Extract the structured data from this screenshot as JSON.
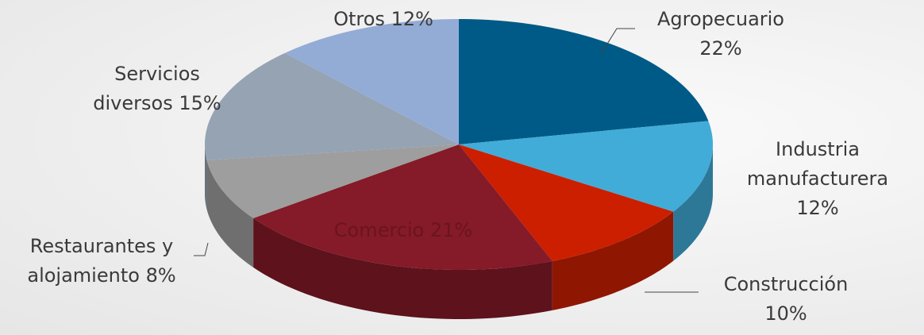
{
  "chart_data": {
    "type": "pie3d",
    "categories": [
      "Agropecuario",
      "Industria manufacturera",
      "Construcción",
      "Comercio",
      "Restaurantes y alojamiento",
      "Servicios diversos",
      "Otros"
    ],
    "values": [
      22,
      12,
      10,
      21,
      8,
      15,
      12
    ],
    "value_labels": [
      "22%",
      "12%",
      "10%",
      "21%",
      "8%",
      "15%",
      "12%"
    ],
    "colors": [
      "#005a87",
      "#41acd8",
      "#cc1f00",
      "#851a28",
      "#9e9e9e",
      "#95a3b3",
      "#93acd6"
    ]
  }
}
